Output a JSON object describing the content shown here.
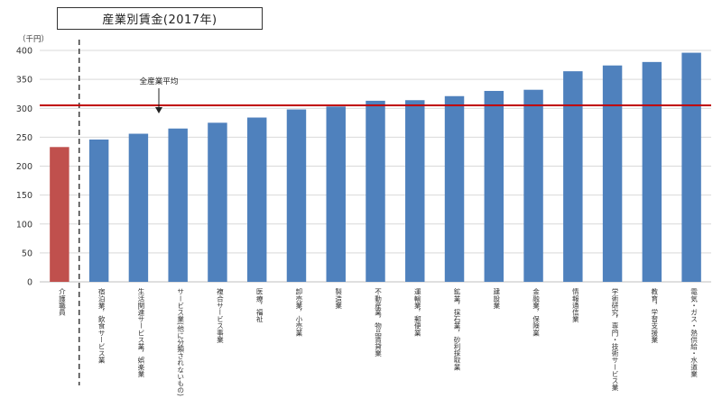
{
  "title": "産業別賃金(2017年)",
  "chart_data": {
    "type": "bar",
    "title": "産業別賃金(2017年)",
    "unit": "（千円）",
    "ylim": [
      0,
      400
    ],
    "yticks": [
      "0",
      "50",
      "100",
      "150",
      "200",
      "250",
      "300",
      "350",
      "400"
    ],
    "grid": true,
    "categories": [
      "介護職員",
      "宿泊業，飲食サービス業",
      "生活関連サービス業，娯楽業",
      "サービス業(他に分類されないもの)",
      "複合サービス事業",
      "医療，福祉",
      "卸売業，小売業",
      "製造業",
      "不動産業，物品賃貸業",
      "運輸業，郵便業",
      "鉱業，採石業，砂利採取業",
      "建設業",
      "金融業，保険業",
      "情報通信業",
      "学術研究，専門・技術サービス業",
      "教育，学習支援業",
      "電気・ガス・熱供給・水道業"
    ],
    "values": [
      233,
      246,
      256,
      265,
      275,
      284,
      298,
      303,
      313,
      314,
      321,
      330,
      332,
      364,
      374,
      380,
      396
    ],
    "bar_colors": [
      "#c0504d",
      "#4f81bd",
      "#4f81bd",
      "#4f81bd",
      "#4f81bd",
      "#4f81bd",
      "#4f81bd",
      "#4f81bd",
      "#4f81bd",
      "#4f81bd",
      "#4f81bd",
      "#4f81bd",
      "#4f81bd",
      "#4f81bd",
      "#4f81bd",
      "#4f81bd",
      "#4f81bd"
    ],
    "reference_line": {
      "label": "全産業平均",
      "value": 305,
      "color": "#c00000"
    },
    "separator": "dashed-after-first-category"
  }
}
